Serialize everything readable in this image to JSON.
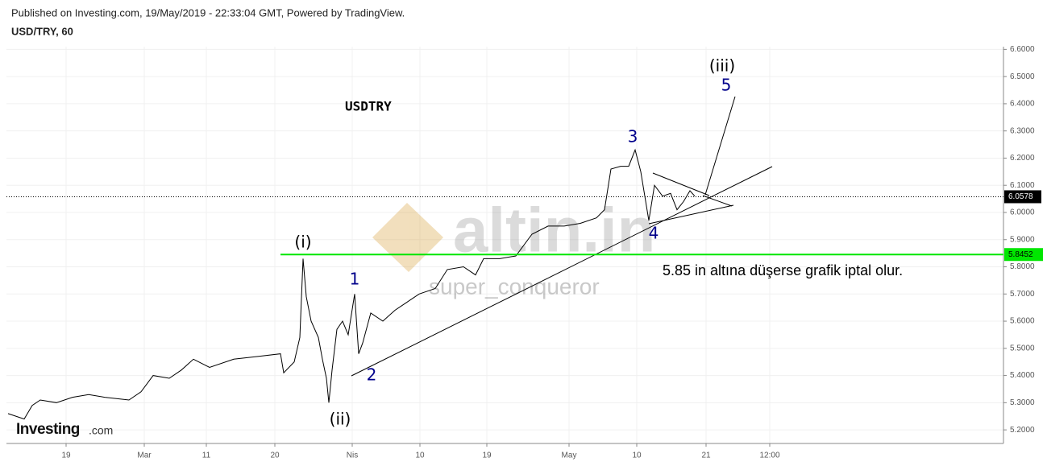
{
  "chart_data": {
    "type": "line",
    "subtitle": "Published on Investing.com, 19/May/2019 - 22:33:04 GMT, Powered by TradingView.",
    "symbol": "USD/TRY, 60",
    "title": "USDTRY",
    "watermark": "altin.in",
    "author": "super_conqueror",
    "logo": "Investing",
    "logo_suffix": ".com",
    "annotation": "5.85 in altına düşerse grafik iptal olur.",
    "color": "#000000",
    "x": [
      0,
      2,
      3,
      4,
      6,
      8,
      10,
      12,
      15,
      16.5,
      18,
      20,
      21.5,
      23,
      25,
      28,
      31,
      33.8,
      34.2,
      35.5,
      36.2,
      36.6,
      37,
      37.6,
      38.5,
      39,
      39.5,
      39.8,
      40.2,
      40.8,
      41.5,
      42.2,
      43,
      43.5,
      44,
      45,
      46.5,
      48,
      49.5,
      51,
      53,
      54.5,
      56.5,
      58,
      59,
      61,
      63,
      65,
      67,
      69,
      71,
      73,
      74,
      74.8,
      76,
      77,
      77.8,
      78.5,
      79,
      79.5,
      80.2,
      81.2,
      82.2,
      83,
      83.8,
      84.6,
      85.2
    ],
    "values": [
      5.26,
      5.24,
      5.29,
      5.31,
      5.3,
      5.32,
      5.33,
      5.32,
      5.31,
      5.34,
      5.4,
      5.39,
      5.42,
      5.46,
      5.43,
      5.46,
      5.47,
      5.48,
      5.41,
      5.45,
      5.54,
      5.83,
      5.69,
      5.6,
      5.54,
      5.46,
      5.39,
      5.3,
      5.42,
      5.57,
      5.6,
      5.55,
      5.7,
      5.48,
      5.52,
      5.63,
      5.6,
      5.64,
      5.67,
      5.7,
      5.72,
      5.79,
      5.8,
      5.77,
      5.83,
      5.83,
      5.84,
      5.92,
      5.95,
      5.95,
      5.96,
      5.98,
      6.01,
      6.16,
      6.17,
      6.17,
      6.23,
      6.15,
      6.06,
      5.97,
      6.1,
      6.06,
      6.07,
      6.01,
      6.04,
      6.08,
      6.06
    ],
    "last_price": 6.0578,
    "level": 5.8452,
    "level_color": "#00e600",
    "xlim": [
      -0.2,
      123.5
    ],
    "xticks": [
      {
        "value": 7.2,
        "label": "19"
      },
      {
        "value": 16.9,
        "label": "Mar"
      },
      {
        "value": 24.6,
        "label": "11"
      },
      {
        "value": 33.1,
        "label": "20"
      },
      {
        "value": 42.7,
        "label": "Nis"
      },
      {
        "value": 51.1,
        "label": "10"
      },
      {
        "value": 59.4,
        "label": "19"
      },
      {
        "value": 69.6,
        "label": "May"
      },
      {
        "value": 78,
        "label": "10"
      },
      {
        "value": 86.6,
        "label": "21"
      },
      {
        "value": 94.5,
        "label": "12:00"
      }
    ],
    "ylim": [
      5.15,
      6.61
    ],
    "yticks": [
      {
        "value": 5.2,
        "label": "5.2000"
      },
      {
        "value": 5.3,
        "label": "5.3000"
      },
      {
        "value": 5.4,
        "label": "5.4000"
      },
      {
        "value": 5.5,
        "label": "5.5000"
      },
      {
        "value": 5.6,
        "label": "5.6000"
      },
      {
        "value": 5.7,
        "label": "5.7000"
      },
      {
        "value": 5.8,
        "label": "5.8000"
      },
      {
        "value": 5.9,
        "label": "5.9000"
      },
      {
        "value": 6.0,
        "label": "6.0000"
      },
      {
        "value": 6.1,
        "label": "6.1000"
      },
      {
        "value": 6.2,
        "label": "6.2000"
      },
      {
        "value": 6.3,
        "label": "6.3000"
      },
      {
        "value": 6.4,
        "label": "6.4000"
      },
      {
        "value": 6.5,
        "label": "6.5000"
      },
      {
        "value": 6.6,
        "label": "6.6000"
      }
    ],
    "grid": true,
    "wave_labels": [
      {
        "text": "(i)",
        "color": "#000000"
      },
      {
        "text": "(ii)",
        "color": "#000000"
      },
      {
        "text": "1",
        "color": "#00008b"
      },
      {
        "text": "2",
        "color": "#00008b"
      },
      {
        "text": "3",
        "color": "#00008b"
      },
      {
        "text": "4",
        "color": "#00008b"
      },
      {
        "text": "5",
        "color": "#00008b"
      },
      {
        "text": "(iii)",
        "color": "#000000"
      }
    ]
  }
}
